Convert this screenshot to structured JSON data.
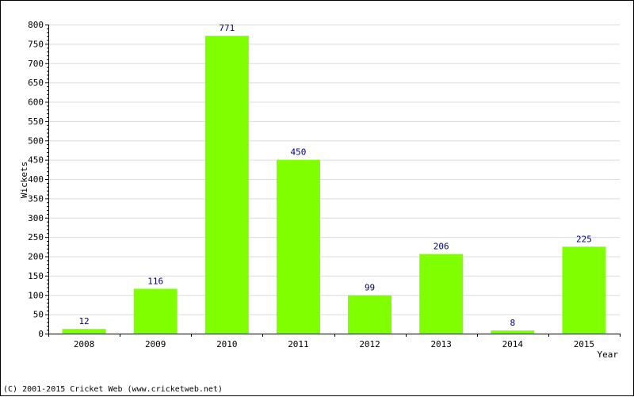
{
  "chart_data": {
    "type": "bar",
    "categories": [
      "2008",
      "2009",
      "2010",
      "2011",
      "2012",
      "2013",
      "2014",
      "2015"
    ],
    "values": [
      12,
      116,
      771,
      450,
      99,
      206,
      8,
      225
    ],
    "data_labels": [
      "12",
      "116",
      "771",
      "450",
      "99",
      "206",
      "8",
      "225"
    ],
    "xlabel": "Year",
    "ylabel": "Wickets",
    "ylim": [
      0,
      800
    ],
    "y_ticks": [
      0,
      50,
      100,
      150,
      200,
      250,
      300,
      350,
      400,
      450,
      500,
      550,
      600,
      650,
      700,
      750,
      800
    ],
    "grid": true,
    "legend": "none"
  },
  "footer": {
    "copyright": "(C) 2001-2015 Cricket Web (www.cricketweb.net)"
  },
  "colors": {
    "bar": "#80ff00",
    "grid": "#dcdcdc",
    "axis": "#000000",
    "data_label": "#000080"
  }
}
